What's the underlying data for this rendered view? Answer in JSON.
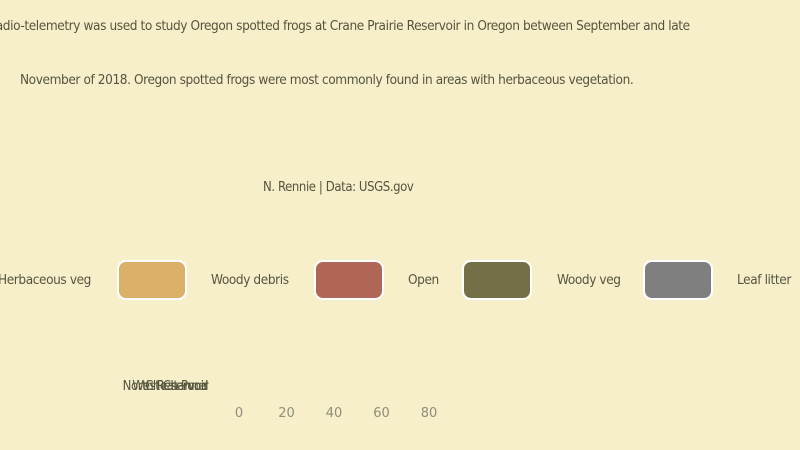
{
  "subtitle_line1": "Radio-telemetry was used to study Oregon spotted frogs at Crane Prairie Reservoir in Oregon between September and late",
  "subtitle_line2": "November of 2018. Oregon spotted frogs were most commonly found in areas with herbaceous vegetation.",
  "caption": "N. Rennie | Data: USGS.gov",
  "legend": [
    {
      "label": "Herbaceous veg",
      "color": "#e9c985"
    },
    {
      "label": "Woody debris",
      "color": "#dbb069"
    },
    {
      "label": "Open",
      "color": "#b06657"
    },
    {
      "label": "Woody veg",
      "color": "#756f48"
    },
    {
      "label": "Leaf litter",
      "color": "#7f7f7f"
    }
  ],
  "chart_data": {
    "type": "bar",
    "orientation": "horizontal",
    "stacked": true,
    "categories": [
      "North Reservoir",
      "West Channel",
      "Reservoir",
      "Cheat Pond"
    ],
    "series": [
      {
        "name": "Herbaceous veg",
        "color": "#e9c985",
        "values": [
          0,
          0,
          0,
          0
        ]
      },
      {
        "name": "Woody debris",
        "color": "#dbb069",
        "values": [
          0,
          0,
          0,
          0
        ]
      },
      {
        "name": "Open",
        "color": "#b06657",
        "values": [
          0,
          0,
          0,
          0
        ]
      },
      {
        "name": "Woody veg",
        "color": "#756f48",
        "values": [
          0,
          0,
          0,
          0
        ]
      },
      {
        "name": "Leaf litter",
        "color": "#7f7f7f",
        "values": [
          0,
          0,
          0,
          0
        ]
      }
    ],
    "x_ticks": [
      "0",
      "20",
      "40",
      "60",
      "80"
    ],
    "xlim": [
      0,
      80
    ],
    "legend_position": "top",
    "grid": false
  }
}
